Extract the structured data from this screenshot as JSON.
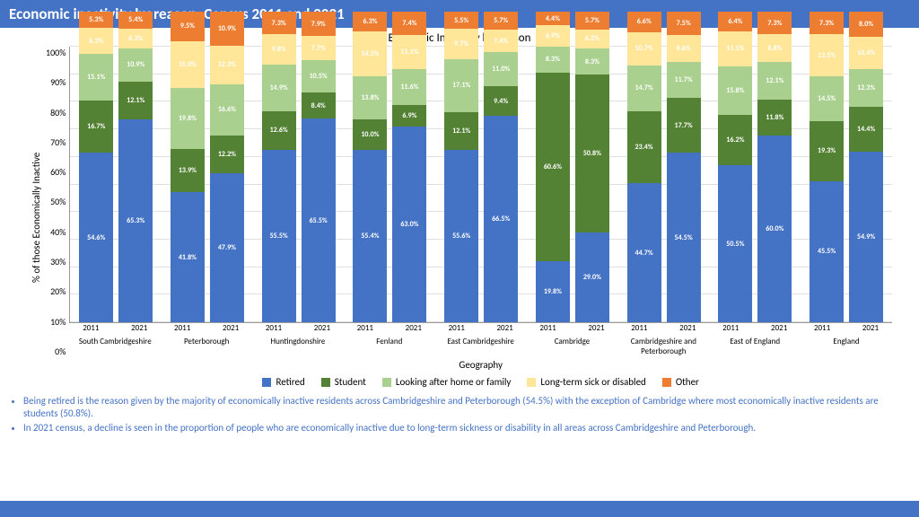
{
  "title": "Economic inactivity by reason, Census 2011 and 2021",
  "chart": {
    "title": "Economic Inactivity by Reason",
    "type": "stacked-bar-100pct",
    "y_axis": {
      "label": "% of those Economically Inactive",
      "min": 0,
      "max": 100,
      "step": 10,
      "ticks": [
        "0%",
        "10%",
        "20%",
        "30%",
        "40%",
        "50%",
        "60%",
        "70%",
        "80%",
        "90%",
        "100%"
      ]
    },
    "x_axis": {
      "label": "Geography"
    },
    "categories": [
      "Retired",
      "Student",
      "Looking after home or family",
      "Long-term sick or disabled",
      "Other"
    ],
    "colors": {
      "Retired": "#4472c4",
      "Student": "#548235",
      "Looking after home or family": "#a9d08e",
      "Long-term sick or disabled": "#ffe699",
      "Other": "#ed7d31"
    },
    "label_color": "#ffffff",
    "grid_color": "#e0e0e0",
    "geographies": [
      {
        "name": "South Cambridgeshire",
        "bars": [
          {
            "year": "2011",
            "values": {
              "Retired": 54.6,
              "Student": 16.7,
              "Looking after home or family": 15.1,
              "Long-term sick or disabled": 8.3,
              "Other": 5.3
            }
          },
          {
            "year": "2021",
            "values": {
              "Retired": 65.3,
              "Student": 12.1,
              "Looking after home or family": 10.9,
              "Long-term sick or disabled": 6.3,
              "Other": 5.4
            }
          }
        ]
      },
      {
        "name": "Peterborough",
        "bars": [
          {
            "year": "2011",
            "values": {
              "Retired": 41.8,
              "Student": 13.9,
              "Looking after home or family": 19.8,
              "Long-term sick or disabled": 15.0,
              "Other": 9.5
            }
          },
          {
            "year": "2021",
            "values": {
              "Retired": 47.9,
              "Student": 12.2,
              "Looking after home or family": 16.6,
              "Long-term sick or disabled": 12.3,
              "Other": 10.9
            }
          }
        ]
      },
      {
        "name": "Huntingdonshire",
        "bars": [
          {
            "year": "2011",
            "values": {
              "Retired": 55.5,
              "Student": 12.6,
              "Looking after home or family": 14.9,
              "Long-term sick or disabled": 9.8,
              "Other": 7.3
            }
          },
          {
            "year": "2021",
            "values": {
              "Retired": 65.5,
              "Student": 8.4,
              "Looking after home or family": 10.5,
              "Long-term sick or disabled": 7.7,
              "Other": 7.9
            }
          }
        ]
      },
      {
        "name": "Fenland",
        "bars": [
          {
            "year": "2011",
            "values": {
              "Retired": 55.4,
              "Student": 10.0,
              "Looking after home or family": 13.8,
              "Long-term sick or disabled": 14.5,
              "Other": 6.3
            }
          },
          {
            "year": "2021",
            "values": {
              "Retired": 63.0,
              "Student": 6.9,
              "Looking after home or family": 11.6,
              "Long-term sick or disabled": 11.1,
              "Other": 7.4
            }
          }
        ]
      },
      {
        "name": "East Cambridgeshire",
        "bars": [
          {
            "year": "2011",
            "values": {
              "Retired": 55.6,
              "Student": 12.1,
              "Looking after home or family": 17.1,
              "Long-term sick or disabled": 9.7,
              "Other": 5.5
            }
          },
          {
            "year": "2021",
            "values": {
              "Retired": 66.5,
              "Student": 9.4,
              "Looking after home or family": 11.0,
              "Long-term sick or disabled": 7.4,
              "Other": 5.7
            }
          }
        ]
      },
      {
        "name": "Cambridge",
        "bars": [
          {
            "year": "2011",
            "values": {
              "Retired": 19.8,
              "Student": 60.6,
              "Looking after home or family": 8.3,
              "Long-term sick or disabled": 6.9,
              "Other": 4.4
            }
          },
          {
            "year": "2021",
            "values": {
              "Retired": 29.0,
              "Student": 50.8,
              "Looking after home or family": 8.3,
              "Long-term sick or disabled": 6.2,
              "Other": 5.7
            }
          }
        ]
      },
      {
        "name": "Cambridgeshire and Peterborough",
        "bars": [
          {
            "year": "2011",
            "values": {
              "Retired": 44.7,
              "Student": 23.4,
              "Looking after home or family": 14.7,
              "Long-term sick or disabled": 10.7,
              "Other": 6.6
            }
          },
          {
            "year": "2021",
            "values": {
              "Retired": 54.5,
              "Student": 17.7,
              "Looking after home or family": 11.7,
              "Long-term sick or disabled": 8.6,
              "Other": 7.5
            }
          }
        ]
      },
      {
        "name": "East of England",
        "bars": [
          {
            "year": "2011",
            "values": {
              "Retired": 50.5,
              "Student": 16.2,
              "Looking after home or family": 15.8,
              "Long-term sick or disabled": 11.1,
              "Other": 6.4
            }
          },
          {
            "year": "2021",
            "values": {
              "Retired": 60.0,
              "Student": 11.8,
              "Looking after home or family": 12.1,
              "Long-term sick or disabled": 8.8,
              "Other": 7.3
            }
          }
        ]
      },
      {
        "name": "England",
        "bars": [
          {
            "year": "2011",
            "values": {
              "Retired": 45.5,
              "Student": 19.3,
              "Looking after home or family": 14.5,
              "Long-term sick or disabled": 13.5,
              "Other": 7.3
            }
          },
          {
            "year": "2021",
            "values": {
              "Retired": 54.9,
              "Student": 14.4,
              "Looking after home or family": 12.3,
              "Long-term sick or disabled": 10.4,
              "Other": 8.0
            }
          }
        ]
      }
    ]
  },
  "bullets": [
    "Being retired is the reason given by the majority of economically inactive residents across Cambridgeshire and Peterborough (54.5%) with the exception of Cambridge where most economically inactive residents are students (50.8%).",
    "In 2021 census, a decline is seen in the proportion of people who are economically inactive due to long-term sickness or disability in all areas across Cambridgeshire and Peterborough."
  ]
}
